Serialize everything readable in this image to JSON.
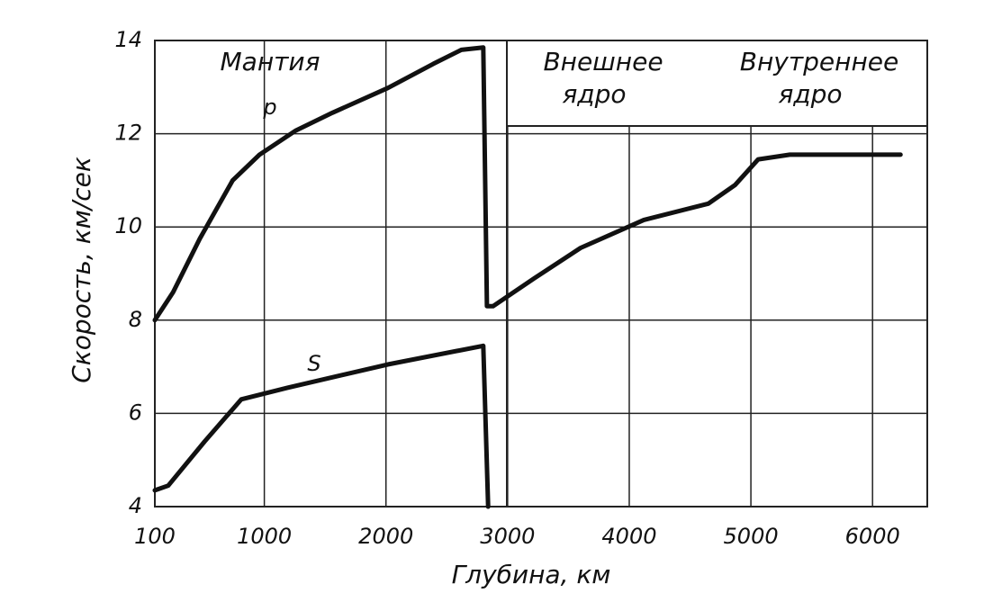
{
  "chart_data": {
    "type": "line",
    "x_label": "Глубина, км",
    "y_label": "Скорость, км/сек",
    "annotations": [
      "Мантия",
      "Внешнее",
      "ядро",
      "Внутреннее",
      "ядро"
    ],
    "xlim": [
      100,
      6450
    ],
    "xticks": [
      100,
      1000,
      2000,
      3000,
      4000,
      5000,
      6000
    ],
    "ylim": [
      4,
      14
    ],
    "yticks": [
      4,
      6,
      8,
      10,
      12,
      14
    ],
    "grid": true,
    "series": [
      {
        "name": "p",
        "color": "#111111",
        "x": [
          100,
          250,
          470,
          740,
          960,
          1260,
          1560,
          2015,
          2390,
          2620,
          2800,
          2830,
          2880,
          3220,
          3600,
          4120,
          4650,
          4870,
          5060,
          5320,
          6230
        ],
        "values": [
          8.0,
          8.6,
          9.75,
          11.0,
          11.55,
          12.07,
          12.45,
          12.98,
          13.5,
          13.8,
          13.85,
          8.3,
          8.3,
          8.9,
          9.55,
          10.15,
          10.5,
          10.9,
          11.45,
          11.55,
          11.55
        ]
      },
      {
        "name": "S",
        "color": "#111111",
        "x": [
          100,
          210,
          510,
          810,
          1190,
          2015,
          2800,
          2840
        ],
        "values": [
          4.35,
          4.45,
          5.4,
          6.3,
          6.55,
          7.05,
          7.45,
          4.0
        ]
      }
    ]
  }
}
